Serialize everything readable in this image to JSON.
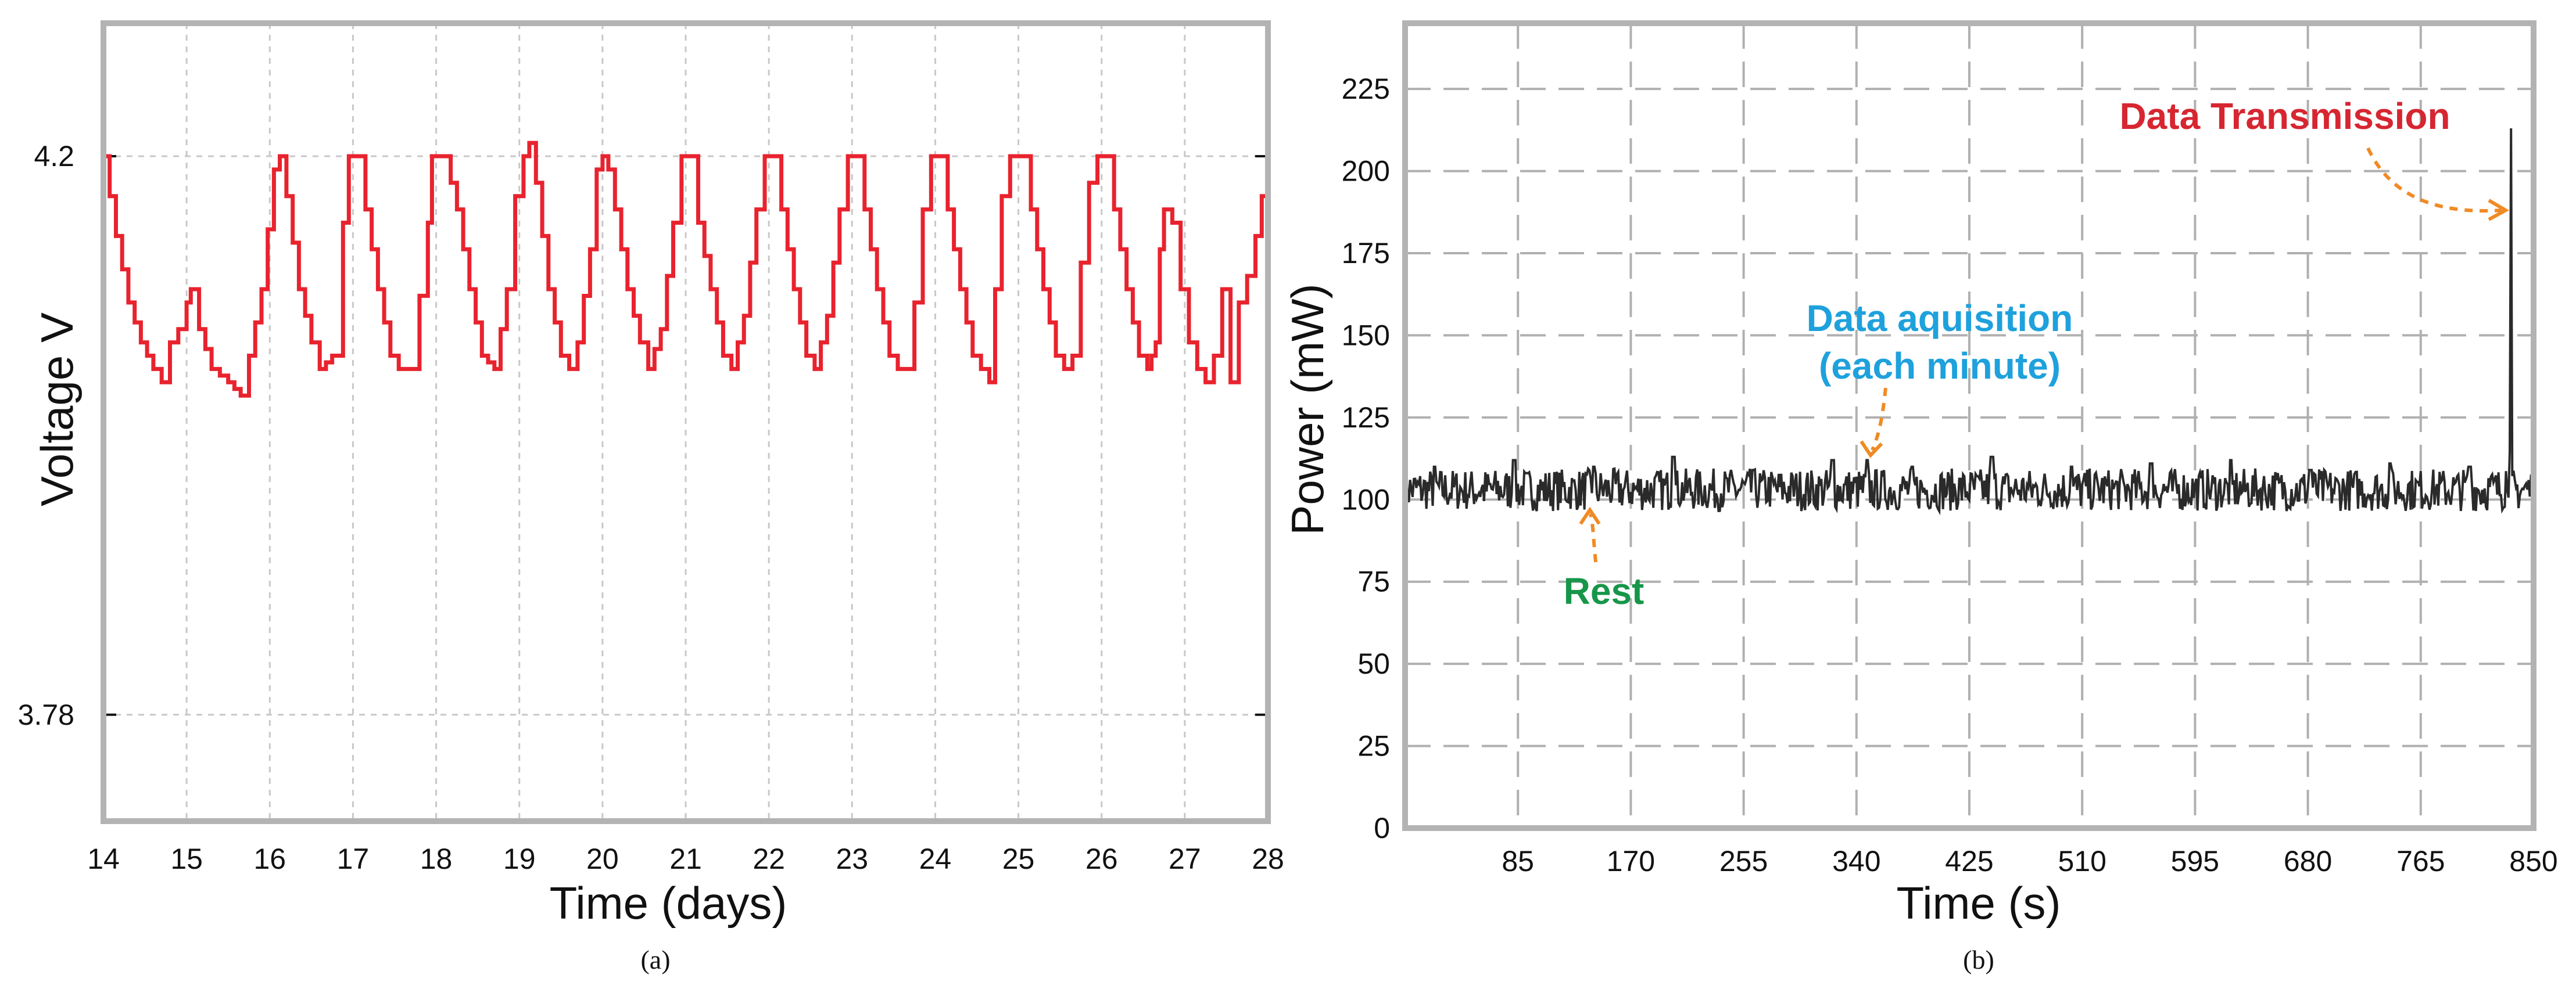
{
  "chart_data": [
    {
      "panel_label": "(a)",
      "type": "line",
      "xlabel": "Time (days)",
      "ylabel": "Voltage V",
      "xlim": [
        14,
        28
      ],
      "ylim": [
        3.7,
        4.3
      ],
      "xticks": [
        14,
        15,
        16,
        17,
        18,
        19,
        20,
        21,
        22,
        23,
        24,
        25,
        26,
        27,
        28
      ],
      "yticks": [
        3.78,
        4.2
      ],
      "ytick_labels": [
        "3.78",
        "4.2"
      ],
      "grid": true,
      "colors": {
        "line": "#e8232e",
        "frame": "#b3b3b3",
        "grid": "#c8c8c8"
      },
      "series": [
        {
          "x": [
            14.0,
            14.15,
            14.3,
            14.45,
            14.6,
            14.7,
            14.8,
            14.9,
            15.0,
            15.05,
            15.15,
            15.3,
            15.5,
            15.65,
            15.75,
            15.9,
            16.05,
            16.12,
            16.2,
            16.35,
            16.5,
            16.6,
            16.75,
            16.88,
            16.95,
            17.05,
            17.15,
            17.3,
            17.45,
            17.55,
            17.7,
            17.9,
            17.95,
            18.1,
            18.25,
            18.4,
            18.55,
            18.7,
            18.85,
            18.95,
            19.05,
            19.12,
            19.2,
            19.35,
            19.5,
            19.6,
            19.7,
            19.85,
            19.93,
            20.0,
            20.07,
            20.15,
            20.3,
            20.45,
            20.55,
            20.7,
            20.85,
            20.95,
            21.05,
            21.15,
            21.3,
            21.45,
            21.55,
            21.7,
            21.85,
            21.95,
            22.05,
            22.15,
            22.3,
            22.45,
            22.55,
            22.7,
            22.85,
            22.95,
            23.05,
            23.15,
            23.3,
            23.45,
            23.55,
            23.65,
            23.75,
            23.85,
            23.95,
            24.05,
            24.15,
            24.3,
            24.45,
            24.55,
            24.65,
            24.72,
            24.8,
            24.9,
            25.05,
            25.15,
            25.3,
            25.45,
            25.55,
            25.65,
            25.75,
            25.85,
            25.95,
            26.05,
            26.15,
            26.3,
            26.45,
            26.55,
            26.6,
            26.65,
            26.7,
            26.75,
            26.85,
            26.95,
            27.05,
            27.15,
            27.25,
            27.35,
            27.45,
            27.55,
            27.65,
            27.75,
            27.85,
            28.0
          ],
          "y": [
            4.2,
            4.14,
            4.09,
            4.06,
            4.04,
            4.03,
            4.06,
            4.07,
            4.09,
            4.1,
            4.07,
            4.04,
            4.03,
            4.02,
            4.05,
            4.1,
            4.19,
            4.2,
            4.17,
            4.1,
            4.06,
            4.04,
            4.05,
            4.15,
            4.2,
            4.2,
            4.16,
            4.1,
            4.05,
            4.04,
            4.04,
            4.15,
            4.2,
            4.2,
            4.16,
            4.1,
            4.05,
            4.04,
            4.1,
            4.17,
            4.2,
            4.21,
            4.18,
            4.1,
            4.05,
            4.04,
            4.06,
            4.13,
            4.19,
            4.2,
            4.19,
            4.16,
            4.1,
            4.06,
            4.04,
            4.07,
            4.15,
            4.2,
            4.2,
            4.15,
            4.1,
            4.05,
            4.04,
            4.08,
            4.16,
            4.2,
            4.2,
            4.16,
            4.1,
            4.05,
            4.04,
            4.08,
            4.16,
            4.2,
            4.2,
            4.16,
            4.1,
            4.05,
            4.04,
            4.04,
            4.09,
            4.16,
            4.2,
            4.2,
            4.16,
            4.1,
            4.05,
            4.04,
            4.03,
            4.1,
            4.17,
            4.2,
            4.2,
            4.16,
            4.1,
            4.05,
            4.04,
            4.05,
            4.12,
            4.18,
            4.2,
            4.2,
            4.16,
            4.1,
            4.05,
            4.04,
            4.05,
            4.06,
            4.13,
            4.16,
            4.15,
            4.1,
            4.06,
            4.04,
            4.03,
            4.05,
            4.1,
            4.03,
            4.09,
            4.11,
            4.14,
            4.2
          ]
        }
      ]
    },
    {
      "panel_label": "(b)",
      "type": "line",
      "xlabel": "Time (s)",
      "ylabel": "Power (mW)",
      "xlim": [
        0,
        850
      ],
      "ylim": [
        0,
        245
      ],
      "xticks": [
        85,
        170,
        255,
        340,
        425,
        510,
        595,
        680,
        765,
        850
      ],
      "yticks": [
        0,
        25,
        50,
        75,
        100,
        125,
        150,
        175,
        200,
        225
      ],
      "grid": true,
      "colors": {
        "line": "#2a2a2a",
        "frame": "#b3b3b3",
        "grid": "#b0b0b0",
        "arrow": "#f08a24"
      },
      "series": [
        {
          "baseline": 103,
          "noise_band": [
            97,
            110
          ],
          "spikes_x": [
            22,
            82,
            142,
            202,
            262,
            322,
            348,
            382,
            442,
            502,
            562,
            622,
            682,
            742,
            802
          ],
          "spikes_y": [
            110,
            112,
            110,
            113,
            109,
            112,
            112,
            110,
            113,
            110,
            111,
            112,
            109,
            111,
            110
          ],
          "peak": {
            "x": 833,
            "y": 213
          }
        }
      ],
      "annotations": [
        {
          "text_lines": [
            "Data Transmission"
          ],
          "color": "#d62631"
        },
        {
          "text_lines": [
            "Data aquisition",
            "(each minute)"
          ],
          "color": "#1ea1dc"
        },
        {
          "text_lines": [
            "Rest"
          ],
          "color": "#17964a"
        }
      ]
    }
  ]
}
